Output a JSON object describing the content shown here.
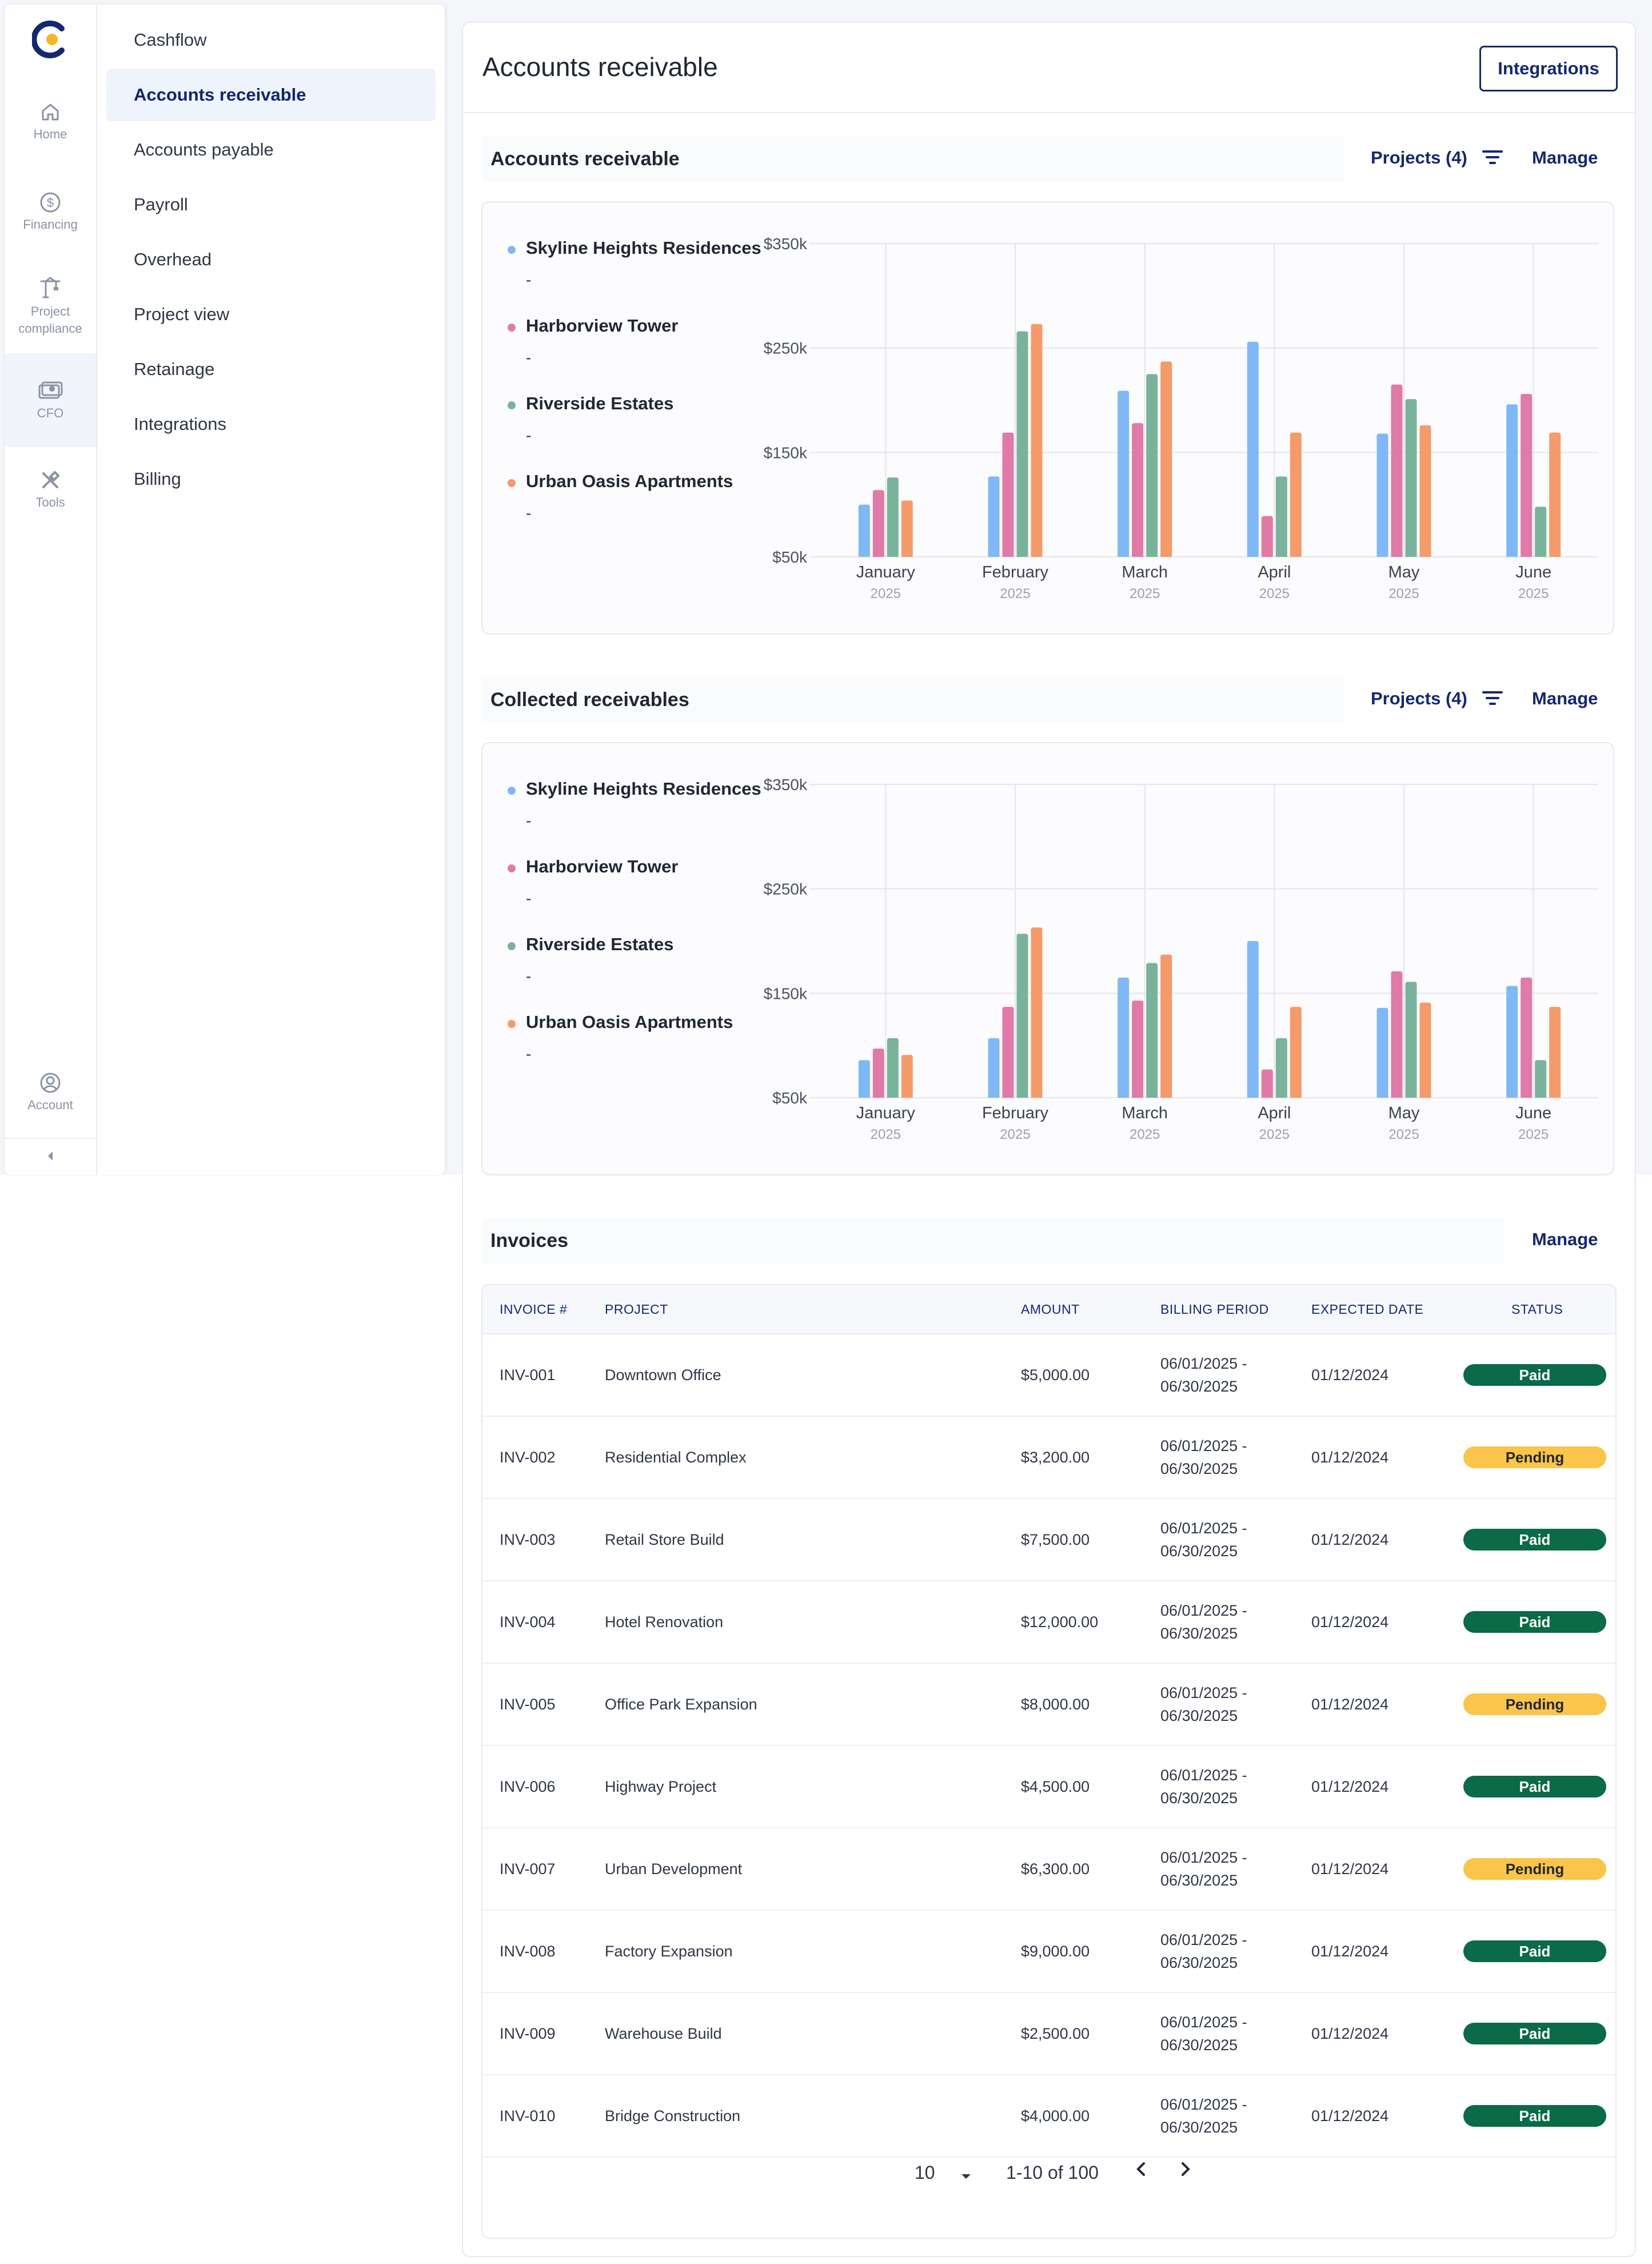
{
  "rail": {
    "items": [
      {
        "label": "Home",
        "icon": "home-icon"
      },
      {
        "label": "Financing",
        "icon": "dollar-icon"
      },
      {
        "label": "Project compliance",
        "icon": "crane-icon"
      },
      {
        "label": "CFO",
        "icon": "money-icon"
      },
      {
        "label": "Tools",
        "icon": "tools-icon"
      }
    ],
    "account_label": "Account"
  },
  "submenu": {
    "items": [
      {
        "label": "Cashflow",
        "active": false
      },
      {
        "label": "Accounts receivable",
        "active": true
      },
      {
        "label": "Accounts payable",
        "active": false
      },
      {
        "label": "Payroll",
        "active": false
      },
      {
        "label": "Overhead",
        "active": false
      },
      {
        "label": "Project view",
        "active": false
      },
      {
        "label": "Retainage",
        "active": false
      },
      {
        "label": "Integrations",
        "active": false
      },
      {
        "label": "Billing",
        "active": false
      }
    ]
  },
  "header": {
    "title": "Accounts receivable",
    "integrations_button": "Integrations"
  },
  "colors": {
    "accent": "#15286f",
    "series": [
      "#7fb8f5",
      "#e07aa8",
      "#7ab39c",
      "#f59a6a"
    ],
    "paid": "#0b6a47",
    "pending": "#fbc44a"
  },
  "sections": {
    "receivable": {
      "title": "Accounts receivable",
      "projects_filter": "Projects (4)",
      "manage": "Manage",
      "legend": [
        {
          "name": "Skyline Heights Residences",
          "value": "-"
        },
        {
          "name": "Harborview Tower",
          "value": "-"
        },
        {
          "name": "Riverside Estates",
          "value": "-"
        },
        {
          "name": "Urban Oasis Apartments",
          "value": "-"
        }
      ]
    },
    "collected": {
      "title": "Collected receivables",
      "projects_filter": "Projects (4)",
      "manage": "Manage",
      "legend": [
        {
          "name": "Skyline Heights Residences",
          "value": "-"
        },
        {
          "name": "Harborview Tower",
          "value": "-"
        },
        {
          "name": "Riverside Estates",
          "value": "-"
        },
        {
          "name": "Urban Oasis Apartments",
          "value": "-"
        }
      ]
    },
    "invoices": {
      "title": "Invoices",
      "manage": "Manage"
    }
  },
  "chart_data": [
    {
      "type": "bar",
      "title": "Accounts receivable",
      "categories": [
        "January",
        "February",
        "March",
        "April",
        "May",
        "June"
      ],
      "category_sublabels": [
        "2025",
        "2025",
        "2025",
        "2025",
        "2025",
        "2025"
      ],
      "ylim": [
        50,
        350
      ],
      "yticks": [
        "$50k",
        "$150k",
        "$250k",
        "$350k"
      ],
      "ytick_values": [
        50,
        150,
        250,
        350
      ],
      "grid": true,
      "series": [
        {
          "name": "Skyline Heights Residences",
          "values": [
            100,
            127,
            209,
            256,
            168,
            196
          ]
        },
        {
          "name": "Harborview Tower",
          "values": [
            114,
            169,
            178,
            89,
            215,
            206
          ]
        },
        {
          "name": "Riverside Estates",
          "values": [
            126,
            266,
            225,
            127,
            201,
            98
          ]
        },
        {
          "name": "Urban Oasis Apartments",
          "values": [
            104,
            273,
            237,
            169,
            176,
            169
          ]
        }
      ]
    },
    {
      "type": "bar",
      "title": "Collected receivables",
      "categories": [
        "January",
        "February",
        "March",
        "April",
        "May",
        "June"
      ],
      "category_sublabels": [
        "2025",
        "2025",
        "2025",
        "2025",
        "2025",
        "2025"
      ],
      "ylim": [
        50,
        350
      ],
      "yticks": [
        "$50k",
        "$150k",
        "$250k",
        "$350k"
      ],
      "ytick_values": [
        50,
        150,
        250,
        350
      ],
      "grid": true,
      "series": [
        {
          "name": "Skyline Heights Residences",
          "values": [
            86,
            107,
            165,
            200,
            136,
            157
          ]
        },
        {
          "name": "Harborview Tower",
          "values": [
            97,
            137,
            143,
            77,
            171,
            165
          ]
        },
        {
          "name": "Riverside Estates",
          "values": [
            107,
            207,
            179,
            107,
            161,
            86
          ]
        },
        {
          "name": "Urban Oasis Apartments",
          "values": [
            91,
            213,
            187,
            137,
            141,
            137
          ]
        }
      ]
    }
  ],
  "table": {
    "headers": [
      "Invoice #",
      "Project",
      "Amount",
      "Billing period",
      "Expected date",
      "Status"
    ],
    "rows": [
      {
        "invoice": "INV-001",
        "project": "Downtown Office",
        "amount": "$5,000.00",
        "period_start": "06/01/2025 -",
        "period_end": "06/30/2025",
        "expected": "01/12/2024",
        "status": "Paid"
      },
      {
        "invoice": "INV-002",
        "project": "Residential Complex",
        "amount": "$3,200.00",
        "period_start": "06/01/2025 -",
        "period_end": "06/30/2025",
        "expected": "01/12/2024",
        "status": "Pending"
      },
      {
        "invoice": "INV-003",
        "project": "Retail Store Build",
        "amount": "$7,500.00",
        "period_start": "06/01/2025 -",
        "period_end": "06/30/2025",
        "expected": "01/12/2024",
        "status": "Paid"
      },
      {
        "invoice": "INV-004",
        "project": "Hotel Renovation",
        "amount": "$12,000.00",
        "period_start": "06/01/2025 -",
        "period_end": "06/30/2025",
        "expected": "01/12/2024",
        "status": "Paid"
      },
      {
        "invoice": "INV-005",
        "project": "Office Park Expansion",
        "amount": "$8,000.00",
        "period_start": "06/01/2025 -",
        "period_end": "06/30/2025",
        "expected": "01/12/2024",
        "status": "Pending"
      },
      {
        "invoice": "INV-006",
        "project": "Highway Project",
        "amount": "$4,500.00",
        "period_start": "06/01/2025 -",
        "period_end": "06/30/2025",
        "expected": "01/12/2024",
        "status": "Paid"
      },
      {
        "invoice": "INV-007",
        "project": "Urban Development",
        "amount": "$6,300.00",
        "period_start": "06/01/2025 -",
        "period_end": "06/30/2025",
        "expected": "01/12/2024",
        "status": "Pending"
      },
      {
        "invoice": "INV-008",
        "project": "Factory Expansion",
        "amount": "$9,000.00",
        "period_start": "06/01/2025 -",
        "period_end": "06/30/2025",
        "expected": "01/12/2024",
        "status": "Paid"
      },
      {
        "invoice": "INV-009",
        "project": "Warehouse Build",
        "amount": "$2,500.00",
        "period_start": "06/01/2025 -",
        "period_end": "06/30/2025",
        "expected": "01/12/2024",
        "status": "Paid"
      },
      {
        "invoice": "INV-010",
        "project": "Bridge Construction",
        "amount": "$4,000.00",
        "period_start": "06/01/2025 -",
        "period_end": "06/30/2025",
        "expected": "01/12/2024",
        "status": "Paid"
      }
    ]
  },
  "pagination": {
    "page_size": "10",
    "range": "1-10 of 100"
  }
}
